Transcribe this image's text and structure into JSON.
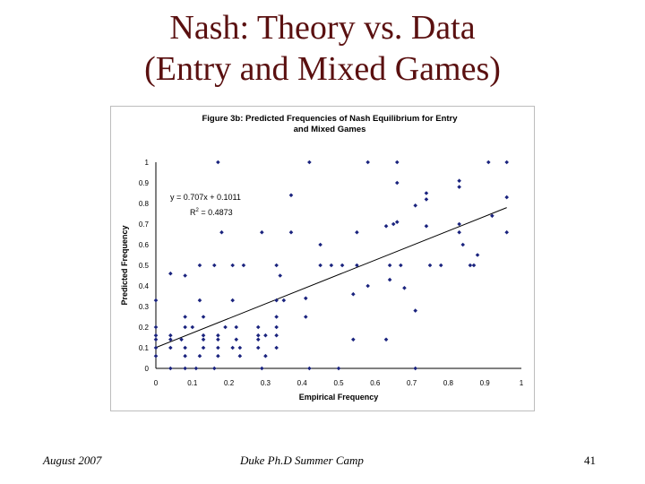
{
  "slide": {
    "title_line1": "Nash: Theory vs. Data",
    "title_line2": "(Entry and Mixed Games)"
  },
  "footer": {
    "left": "August 2007",
    "center": "Duke Ph.D Summer Camp",
    "page_number": "41"
  },
  "colors": {
    "title": "#5a1010",
    "points": "#1a237e",
    "trendline": "#000000"
  },
  "chart_data": {
    "type": "scatter",
    "title_line1": "Figure 3b: Predicted Frequencies of Nash Equilibrium for Entry",
    "title_line2": "and Mixed Games",
    "xlabel": "Empirical Frequency",
    "ylabel": "Predicted Frequency",
    "xlim": [
      0,
      1
    ],
    "ylim": [
      0,
      1
    ],
    "x_ticks": [
      "0",
      "0.1",
      "0.2",
      "0.3",
      "0.4",
      "0.5",
      "0.6",
      "0.7",
      "0.8",
      "0.9",
      "1"
    ],
    "y_ticks": [
      "0",
      "0.1",
      "0.2",
      "0.3",
      "0.4",
      "0.5",
      "0.6",
      "0.7",
      "0.8",
      "0.9",
      "1"
    ],
    "grid": false,
    "legend": "none",
    "trendline": {
      "slope": 0.707,
      "intercept": 0.1011,
      "x_range": [
        0,
        0.96
      ],
      "equation_label": "y = 0.707x + 0.1011",
      "r2_label_prefix": "R",
      "r2_label_sup": "2",
      "r2_label_value": " = 0.4873"
    },
    "points": [
      [
        0.17,
        1
      ],
      [
        0.42,
        1
      ],
      [
        0.58,
        1
      ],
      [
        0.66,
        1
      ],
      [
        0.91,
        1
      ],
      [
        0.96,
        1
      ],
      [
        0.66,
        0.9
      ],
      [
        0.83,
        0.91
      ],
      [
        0.83,
        0.88
      ],
      [
        0.74,
        0.85
      ],
      [
        0.74,
        0.82
      ],
      [
        0.37,
        0.84
      ],
      [
        0.96,
        0.83
      ],
      [
        0.71,
        0.79
      ],
      [
        0.63,
        0.69
      ],
      [
        0.65,
        0.7
      ],
      [
        0.66,
        0.71
      ],
      [
        0.74,
        0.69
      ],
      [
        0.83,
        0.7
      ],
      [
        0.92,
        0.74
      ],
      [
        0.18,
        0.66
      ],
      [
        0.29,
        0.66
      ],
      [
        0.37,
        0.66
      ],
      [
        0.55,
        0.66
      ],
      [
        0.83,
        0.66
      ],
      [
        0.84,
        0.6
      ],
      [
        0.96,
        0.66
      ],
      [
        0.45,
        0.6
      ],
      [
        0.88,
        0.55
      ],
      [
        0.04,
        0.46
      ],
      [
        0.08,
        0.45
      ],
      [
        0.12,
        0.5
      ],
      [
        0.16,
        0.5
      ],
      [
        0.21,
        0.5
      ],
      [
        0.24,
        0.5
      ],
      [
        0.33,
        0.5
      ],
      [
        0.45,
        0.5
      ],
      [
        0.48,
        0.5
      ],
      [
        0.51,
        0.5
      ],
      [
        0.55,
        0.5
      ],
      [
        0.64,
        0.5
      ],
      [
        0.67,
        0.5
      ],
      [
        0.75,
        0.5
      ],
      [
        0.78,
        0.5
      ],
      [
        0.86,
        0.5
      ],
      [
        0.87,
        0.5
      ],
      [
        0.34,
        0.45
      ],
      [
        0.58,
        0.4
      ],
      [
        0.64,
        0.43
      ],
      [
        0.68,
        0.39
      ],
      [
        0,
        0.33
      ],
      [
        0.12,
        0.33
      ],
      [
        0.21,
        0.33
      ],
      [
        0.33,
        0.33
      ],
      [
        0.35,
        0.33
      ],
      [
        0.41,
        0.34
      ],
      [
        0.54,
        0.36
      ],
      [
        0.71,
        0.28
      ],
      [
        0.08,
        0.25
      ],
      [
        0.13,
        0.25
      ],
      [
        0.33,
        0.25
      ],
      [
        0.41,
        0.25
      ],
      [
        0,
        0.2
      ],
      [
        0.08,
        0.2
      ],
      [
        0.1,
        0.2
      ],
      [
        0.19,
        0.2
      ],
      [
        0.22,
        0.2
      ],
      [
        0.28,
        0.2
      ],
      [
        0.33,
        0.2
      ],
      [
        0,
        0.16
      ],
      [
        0.04,
        0.16
      ],
      [
        0.13,
        0.16
      ],
      [
        0.17,
        0.16
      ],
      [
        0.28,
        0.16
      ],
      [
        0.3,
        0.16
      ],
      [
        0.33,
        0.16
      ],
      [
        0,
        0.14
      ],
      [
        0.04,
        0.14
      ],
      [
        0.07,
        0.14
      ],
      [
        0.13,
        0.14
      ],
      [
        0.17,
        0.14
      ],
      [
        0.22,
        0.14
      ],
      [
        0.28,
        0.14
      ],
      [
        0.54,
        0.14
      ],
      [
        0.63,
        0.14
      ],
      [
        0,
        0.1
      ],
      [
        0.04,
        0.1
      ],
      [
        0.08,
        0.1
      ],
      [
        0.13,
        0.1
      ],
      [
        0.17,
        0.1
      ],
      [
        0.21,
        0.1
      ],
      [
        0.23,
        0.1
      ],
      [
        0.28,
        0.1
      ],
      [
        0.33,
        0.1
      ],
      [
        0,
        0.06
      ],
      [
        0.08,
        0.06
      ],
      [
        0.12,
        0.06
      ],
      [
        0.17,
        0.06
      ],
      [
        0.23,
        0.06
      ],
      [
        0.3,
        0.06
      ],
      [
        0.04,
        0
      ],
      [
        0.08,
        0
      ],
      [
        0.11,
        0
      ],
      [
        0.16,
        0
      ],
      [
        0.29,
        0
      ],
      [
        0.42,
        0
      ],
      [
        0.5,
        0
      ],
      [
        0.71,
        0
      ]
    ]
  }
}
